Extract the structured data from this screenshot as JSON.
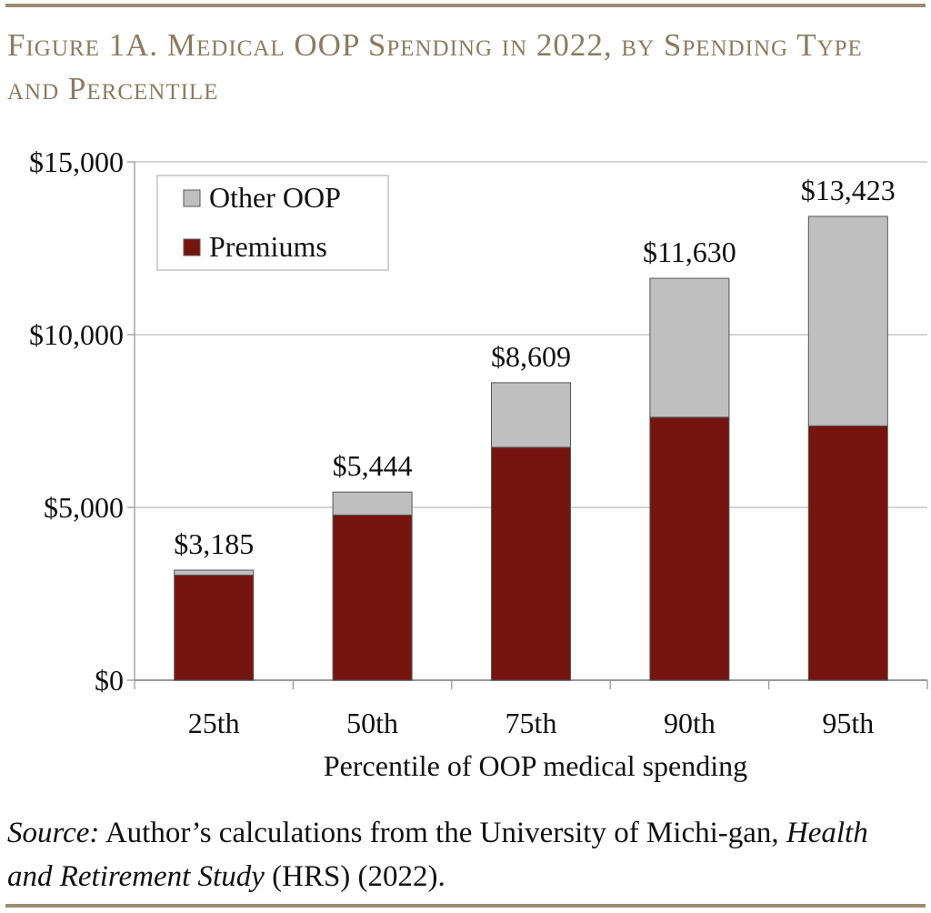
{
  "title": "Figure 1A. Medical OOP Spending in 2022, by Spending Type and Percentile",
  "source": {
    "label": "Source:",
    "text_1": " Author’s calculations from the University of Michi-gan, ",
    "italic": "Health and Retirement Study",
    "text_2": " (HRS) (2022)."
  },
  "chart_data": {
    "type": "bar",
    "stacked": true,
    "categories": [
      "25th",
      "50th",
      "75th",
      "90th",
      "95th"
    ],
    "series": [
      {
        "name": "Premiums",
        "color": "#761510",
        "values": [
          3040,
          4780,
          6740,
          7610,
          7360
        ]
      },
      {
        "name": "Other OOP",
        "color": "#bfbfbf",
        "values": [
          145,
          664,
          1869,
          4020,
          6063
        ]
      }
    ],
    "data_labels": [
      "$3,185",
      "$5,444",
      "$8,609",
      "$11,630",
      "$13,423"
    ],
    "totals": [
      3185,
      5444,
      8609,
      11630,
      13423
    ],
    "xlabel": "Percentile of OOP medical spending",
    "ylabel": "",
    "ylim": [
      0,
      15000
    ],
    "yticks": [
      0,
      5000,
      10000,
      15000
    ],
    "ytick_labels": [
      "$0",
      "$5,000",
      "$10,000",
      "$15,000"
    ],
    "grid": true,
    "legend": {
      "placement": "top-left",
      "entries": [
        "Other OOP",
        "Premiums"
      ]
    }
  }
}
